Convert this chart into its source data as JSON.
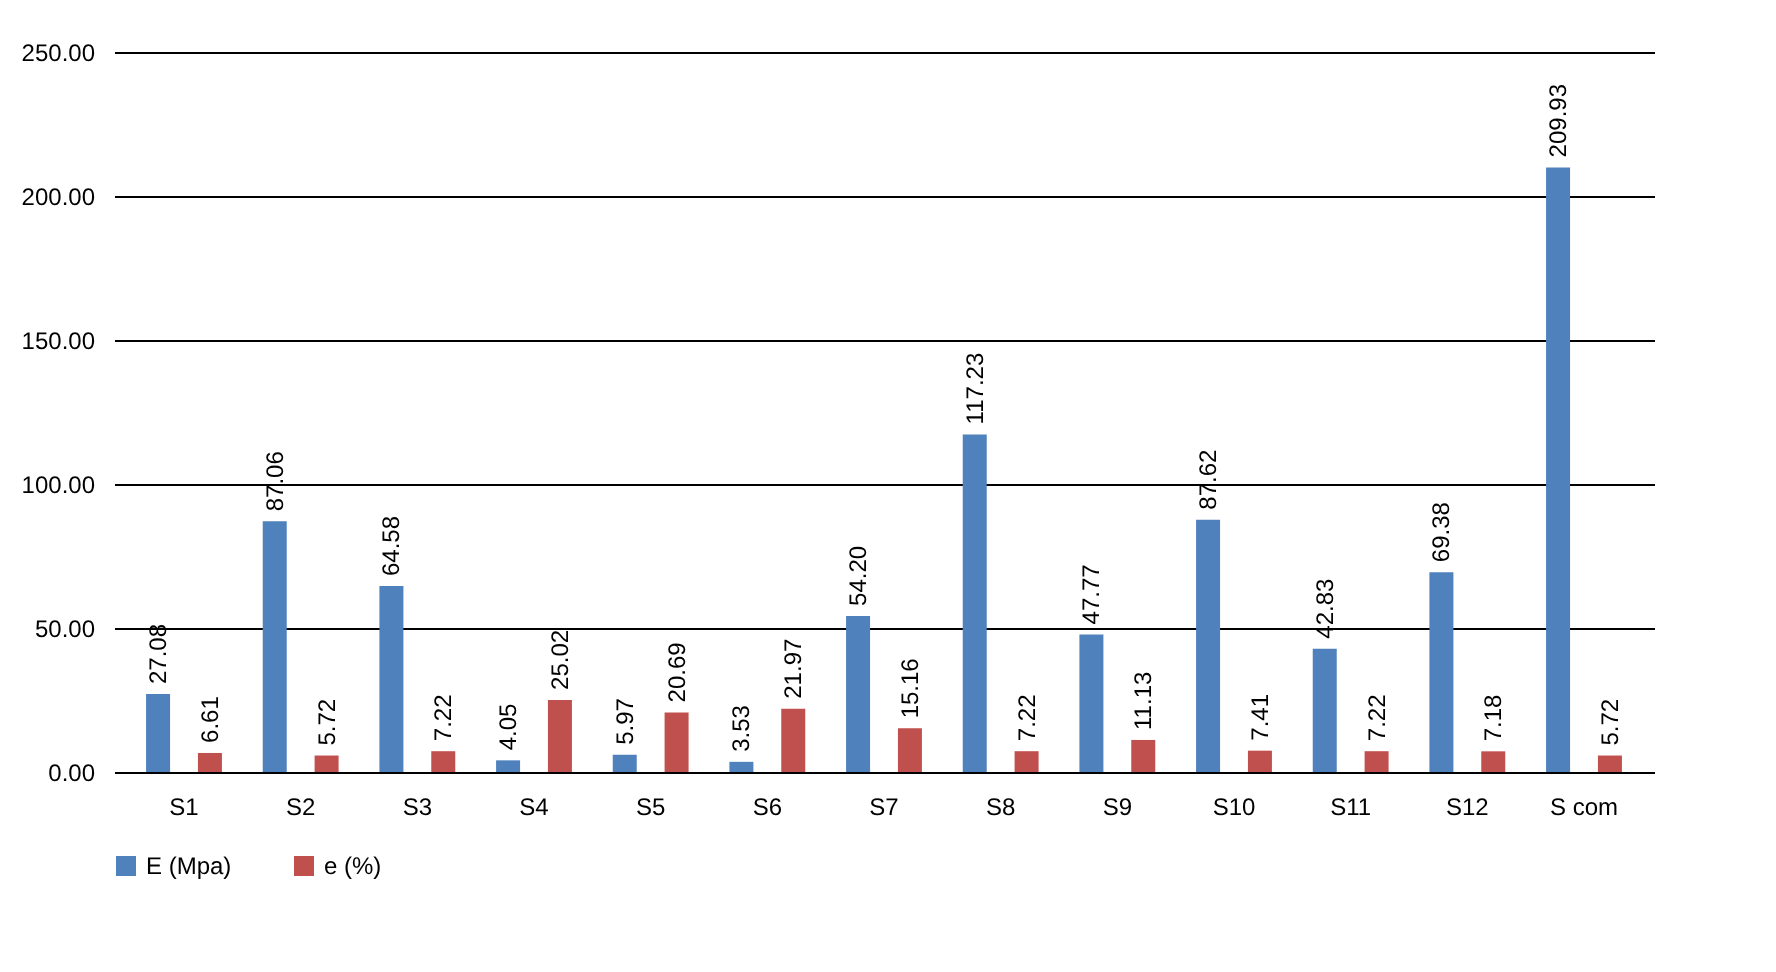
{
  "chart_data": {
    "type": "bar",
    "categories": [
      "S1",
      "S2",
      "S3",
      "S4",
      "S5",
      "S6",
      "S7",
      "S8",
      "S9",
      "S10",
      "S11",
      "S12",
      "S com"
    ],
    "series": [
      {
        "name": "E (Mpa)",
        "color": "#4f81bd",
        "values": [
          27.08,
          87.06,
          64.58,
          4.05,
          5.97,
          3.53,
          54.2,
          117.23,
          47.77,
          87.62,
          42.83,
          69.38,
          209.93
        ],
        "value_labels": [
          "27.08",
          "87.06",
          "64.58",
          "4.05",
          "5.97",
          "3.53",
          "54.20",
          "117.23",
          "47.77",
          "87.62",
          "42.83",
          "69.38",
          "209.93"
        ]
      },
      {
        "name": "e (%)",
        "color": "#c0504d",
        "values": [
          6.61,
          5.72,
          7.22,
          25.02,
          20.69,
          21.97,
          15.16,
          7.22,
          11.13,
          7.41,
          7.22,
          7.18,
          5.72
        ],
        "value_labels": [
          "6.61",
          "5.72",
          "7.22",
          "25.02",
          "20.69",
          "21.97",
          "15.16",
          "7.22",
          "11.13",
          "7.41",
          "7.22",
          "7.18",
          "5.72"
        ]
      }
    ],
    "ylim": [
      0,
      250
    ],
    "yticks": [
      {
        "value": 0,
        "label": "0.00"
      },
      {
        "value": 50,
        "label": "50.00"
      },
      {
        "value": 100,
        "label": "100.00"
      },
      {
        "value": 150,
        "label": "150.00"
      },
      {
        "value": 200,
        "label": "200.00"
      },
      {
        "value": 250,
        "label": "250.00"
      }
    ],
    "grid": "y",
    "legend": "bottom"
  }
}
